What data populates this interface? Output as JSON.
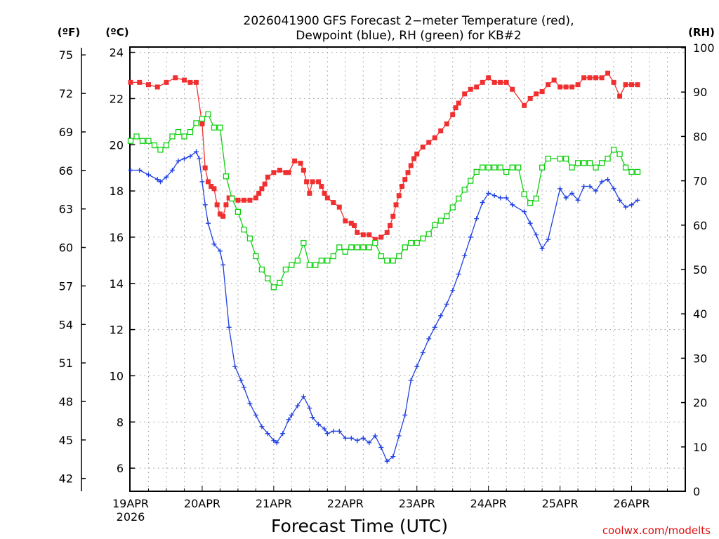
{
  "chart_data": {
    "type": "line",
    "title_line1": "2026041900 GFS Forecast 2−meter Temperature (red),",
    "title_line2": "Dewpoint (blue), RH (green) for KB#2",
    "xlabel": "Forecast Time (UTC)",
    "credit": "coolwx.com/modelts",
    "axis_units": {
      "fahrenheit": "(ºF)",
      "celsius": "(ºC)",
      "rh": "(RH)"
    },
    "x_range_hours": [
      0,
      186
    ],
    "x_ticks": [
      {
        "hour": 0,
        "label": "19APR",
        "sublabel": "2026"
      },
      {
        "hour": 24,
        "label": "20APR"
      },
      {
        "hour": 48,
        "label": "21APR"
      },
      {
        "hour": 72,
        "label": "22APR"
      },
      {
        "hour": 96,
        "label": "23APR"
      },
      {
        "hour": 120,
        "label": "24APR"
      },
      {
        "hour": 144,
        "label": "25APR"
      },
      {
        "hour": 168,
        "label": "26APR"
      }
    ],
    "celsius_range": [
      5,
      24.2
    ],
    "celsius_ticks": [
      "6",
      "8",
      "10",
      "12",
      "14",
      "16",
      "18",
      "20",
      "22",
      "24"
    ],
    "fahrenheit_ticks": [
      "42",
      "45",
      "48",
      "51",
      "54",
      "57",
      "60",
      "63",
      "66",
      "69",
      "72",
      "75"
    ],
    "rh_range": [
      0,
      100
    ],
    "rh_ticks": [
      "0",
      "10",
      "20",
      "30",
      "40",
      "50",
      "60",
      "70",
      "80",
      "90",
      "100"
    ],
    "series": [
      {
        "name": "Temperature",
        "unit": "C",
        "color": "#f03030",
        "marker": "filled-square",
        "points": [
          [
            0,
            22.7
          ],
          [
            3,
            22.7
          ],
          [
            6,
            22.6
          ],
          [
            9,
            22.5
          ],
          [
            12,
            22.7
          ],
          [
            15,
            22.9
          ],
          [
            18,
            22.8
          ],
          [
            20,
            22.7
          ],
          [
            22,
            22.7
          ],
          [
            24,
            20.9
          ],
          [
            25,
            19.0
          ],
          [
            26,
            18.4
          ],
          [
            27,
            18.2
          ],
          [
            28,
            18.1
          ],
          [
            29,
            17.4
          ],
          [
            30,
            17.0
          ],
          [
            31,
            16.9
          ],
          [
            32,
            17.4
          ],
          [
            33,
            17.7
          ],
          [
            34,
            17.7
          ],
          [
            36,
            17.6
          ],
          [
            38,
            17.6
          ],
          [
            40,
            17.6
          ],
          [
            42,
            17.7
          ],
          [
            43,
            17.9
          ],
          [
            44,
            18.1
          ],
          [
            45,
            18.3
          ],
          [
            46,
            18.6
          ],
          [
            48,
            18.8
          ],
          [
            50,
            18.9
          ],
          [
            52,
            18.8
          ],
          [
            53,
            18.8
          ],
          [
            55,
            19.3
          ],
          [
            57,
            19.2
          ],
          [
            58,
            18.9
          ],
          [
            59,
            18.4
          ],
          [
            60,
            17.9
          ],
          [
            61,
            18.4
          ],
          [
            63,
            18.4
          ],
          [
            64,
            18.2
          ],
          [
            65,
            17.9
          ],
          [
            66,
            17.7
          ],
          [
            68,
            17.5
          ],
          [
            70,
            17.3
          ],
          [
            72,
            16.7
          ],
          [
            74,
            16.6
          ],
          [
            75,
            16.5
          ],
          [
            76,
            16.2
          ],
          [
            78,
            16.1
          ],
          [
            80,
            16.1
          ],
          [
            82,
            15.9
          ],
          [
            84,
            16.0
          ],
          [
            86,
            16.2
          ],
          [
            87,
            16.5
          ],
          [
            88,
            16.9
          ],
          [
            89,
            17.4
          ],
          [
            90,
            17.8
          ],
          [
            91,
            18.2
          ],
          [
            92,
            18.5
          ],
          [
            93,
            18.8
          ],
          [
            94,
            19.1
          ],
          [
            95,
            19.4
          ],
          [
            96,
            19.6
          ],
          [
            98,
            19.9
          ],
          [
            100,
            20.1
          ],
          [
            102,
            20.3
          ],
          [
            104,
            20.6
          ],
          [
            106,
            20.9
          ],
          [
            108,
            21.3
          ],
          [
            109,
            21.6
          ],
          [
            110,
            21.8
          ],
          [
            112,
            22.2
          ],
          [
            114,
            22.4
          ],
          [
            116,
            22.5
          ],
          [
            118,
            22.7
          ],
          [
            120,
            22.9
          ],
          [
            122,
            22.7
          ],
          [
            124,
            22.7
          ],
          [
            126,
            22.7
          ],
          [
            128,
            22.4
          ],
          [
            132,
            21.7
          ],
          [
            134,
            22.0
          ],
          [
            136,
            22.2
          ],
          [
            138,
            22.3
          ],
          [
            140,
            22.6
          ],
          [
            142,
            22.8
          ],
          [
            144,
            22.5
          ],
          [
            146,
            22.5
          ],
          [
            148,
            22.5
          ],
          [
            150,
            22.6
          ],
          [
            152,
            22.9
          ],
          [
            154,
            22.9
          ],
          [
            156,
            22.9
          ],
          [
            158,
            22.9
          ],
          [
            160,
            23.1
          ],
          [
            162,
            22.7
          ],
          [
            164,
            22.1
          ],
          [
            166,
            22.6
          ],
          [
            168,
            22.6
          ],
          [
            170,
            22.6
          ]
        ]
      },
      {
        "name": "Dewpoint",
        "unit": "C",
        "color": "#2040e0",
        "marker": "plus",
        "points": [
          [
            0,
            18.9
          ],
          [
            3,
            18.9
          ],
          [
            6,
            18.7
          ],
          [
            9,
            18.5
          ],
          [
            10,
            18.4
          ],
          [
            12,
            18.6
          ],
          [
            14,
            18.9
          ],
          [
            16,
            19.3
          ],
          [
            18,
            19.4
          ],
          [
            20,
            19.5
          ],
          [
            22,
            19.7
          ],
          [
            23,
            19.4
          ],
          [
            24,
            18.4
          ],
          [
            25,
            17.4
          ],
          [
            26,
            16.6
          ],
          [
            28,
            15.7
          ],
          [
            30,
            15.4
          ],
          [
            31,
            14.8
          ],
          [
            33,
            12.1
          ],
          [
            35,
            10.4
          ],
          [
            37,
            9.8
          ],
          [
            38,
            9.5
          ],
          [
            40,
            8.8
          ],
          [
            42,
            8.3
          ],
          [
            44,
            7.8
          ],
          [
            46,
            7.5
          ],
          [
            48,
            7.2
          ],
          [
            49,
            7.1
          ],
          [
            51,
            7.5
          ],
          [
            53,
            8.1
          ],
          [
            54,
            8.3
          ],
          [
            56,
            8.7
          ],
          [
            58,
            9.1
          ],
          [
            60,
            8.6
          ],
          [
            61,
            8.2
          ],
          [
            63,
            7.9
          ],
          [
            65,
            7.7
          ],
          [
            66,
            7.5
          ],
          [
            68,
            7.6
          ],
          [
            70,
            7.6
          ],
          [
            72,
            7.3
          ],
          [
            74,
            7.3
          ],
          [
            76,
            7.2
          ],
          [
            78,
            7.3
          ],
          [
            80,
            7.1
          ],
          [
            82,
            7.4
          ],
          [
            84,
            6.9
          ],
          [
            86,
            6.3
          ],
          [
            88,
            6.5
          ],
          [
            90,
            7.4
          ],
          [
            92,
            8.3
          ],
          [
            94,
            9.8
          ],
          [
            96,
            10.4
          ],
          [
            98,
            11.0
          ],
          [
            100,
            11.6
          ],
          [
            102,
            12.1
          ],
          [
            104,
            12.6
          ],
          [
            106,
            13.1
          ],
          [
            108,
            13.7
          ],
          [
            110,
            14.4
          ],
          [
            112,
            15.2
          ],
          [
            114,
            16.0
          ],
          [
            116,
            16.8
          ],
          [
            118,
            17.5
          ],
          [
            120,
            17.9
          ],
          [
            122,
            17.8
          ],
          [
            124,
            17.7
          ],
          [
            126,
            17.7
          ],
          [
            128,
            17.4
          ],
          [
            132,
            17.1
          ],
          [
            134,
            16.6
          ],
          [
            136,
            16.1
          ],
          [
            138,
            15.5
          ],
          [
            140,
            15.9
          ],
          [
            144,
            18.1
          ],
          [
            146,
            17.7
          ],
          [
            148,
            17.9
          ],
          [
            150,
            17.6
          ],
          [
            152,
            18.2
          ],
          [
            154,
            18.2
          ],
          [
            156,
            18.0
          ],
          [
            158,
            18.4
          ],
          [
            160,
            18.5
          ],
          [
            162,
            18.1
          ],
          [
            164,
            17.6
          ],
          [
            166,
            17.3
          ],
          [
            168,
            17.4
          ],
          [
            170,
            17.6
          ]
        ]
      },
      {
        "name": "RH",
        "unit": "%",
        "color": "#10d010",
        "marker": "open-square",
        "points": [
          [
            0,
            79
          ],
          [
            2,
            80
          ],
          [
            4,
            79
          ],
          [
            6,
            79
          ],
          [
            8,
            78
          ],
          [
            10,
            77
          ],
          [
            12,
            78
          ],
          [
            14,
            80
          ],
          [
            16,
            81
          ],
          [
            18,
            80
          ],
          [
            20,
            81
          ],
          [
            22,
            83
          ],
          [
            24,
            84
          ],
          [
            26,
            85
          ],
          [
            28,
            82
          ],
          [
            30,
            82
          ],
          [
            32,
            71
          ],
          [
            34,
            66
          ],
          [
            36,
            63
          ],
          [
            38,
            59
          ],
          [
            40,
            57
          ],
          [
            42,
            53
          ],
          [
            44,
            50
          ],
          [
            46,
            48
          ],
          [
            48,
            46
          ],
          [
            50,
            47
          ],
          [
            52,
            50
          ],
          [
            54,
            51
          ],
          [
            56,
            52
          ],
          [
            58,
            56
          ],
          [
            60,
            51
          ],
          [
            62,
            51
          ],
          [
            64,
            52
          ],
          [
            66,
            52
          ],
          [
            68,
            53
          ],
          [
            70,
            55
          ],
          [
            72,
            54
          ],
          [
            74,
            55
          ],
          [
            76,
            55
          ],
          [
            78,
            55
          ],
          [
            80,
            55
          ],
          [
            82,
            56
          ],
          [
            84,
            53
          ],
          [
            86,
            52
          ],
          [
            88,
            52
          ],
          [
            90,
            53
          ],
          [
            92,
            55
          ],
          [
            94,
            56
          ],
          [
            96,
            56
          ],
          [
            98,
            57
          ],
          [
            100,
            58
          ],
          [
            102,
            60
          ],
          [
            104,
            61
          ],
          [
            106,
            62
          ],
          [
            108,
            64
          ],
          [
            110,
            66
          ],
          [
            112,
            68
          ],
          [
            114,
            70
          ],
          [
            116,
            72
          ],
          [
            118,
            73
          ],
          [
            120,
            73
          ],
          [
            122,
            73
          ],
          [
            124,
            73
          ],
          [
            126,
            72
          ],
          [
            128,
            73
          ],
          [
            130,
            73
          ],
          [
            132,
            67
          ],
          [
            134,
            65
          ],
          [
            136,
            66
          ],
          [
            138,
            73
          ],
          [
            140,
            75
          ],
          [
            144,
            75
          ],
          [
            146,
            75
          ],
          [
            148,
            73
          ],
          [
            150,
            74
          ],
          [
            152,
            74
          ],
          [
            154,
            74
          ],
          [
            156,
            73
          ],
          [
            158,
            74
          ],
          [
            160,
            75
          ],
          [
            162,
            77
          ],
          [
            164,
            76
          ],
          [
            166,
            73
          ],
          [
            168,
            72
          ],
          [
            170,
            72
          ]
        ]
      }
    ]
  }
}
